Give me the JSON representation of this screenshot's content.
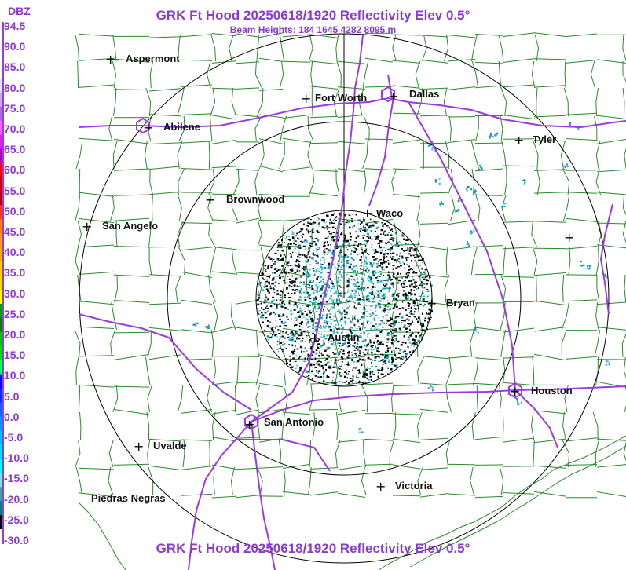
{
  "header": {
    "title": "GRK Ft Hood 20250618/1920 Reflectivity Elev 0.5°",
    "beam_heights": "Beam Heights: 184 1645 4282 8095 m",
    "footer_title": "GRK Ft Hood 20250618/1920 Reflectivity Elev 0.5°"
  },
  "legend": {
    "unit": "DBZ",
    "levels": [
      "94.5",
      "90.0",
      "85.0",
      "80.0",
      "75.0",
      "70.0",
      "65.0",
      "60.0",
      "55.0",
      "50.0",
      "45.0",
      "40.0",
      "35.0",
      "30.0",
      "25.0",
      "20.0",
      "15.0",
      "10.0",
      "5.0",
      "0.0",
      "-5.0",
      "-10.0",
      "-15.0",
      "-20.0",
      "-25.0",
      "-30.0"
    ],
    "colors": [
      "#ffffff",
      "#ffffff",
      "#ffffff",
      "#ffffff",
      "#e8e0f0",
      "#c8a8e8",
      "#a070e0",
      "#ff60ff",
      "#e020e0",
      "#b000b0",
      "#ff0000",
      "#d00000",
      "#b00000",
      "#ff3030",
      "#ff8000",
      "#ff9830",
      "#f0b000",
      "#ffd000",
      "#e8e000",
      "#ffff00",
      "#00a000",
      "#008000",
      "#00c800",
      "#00e000",
      "#00ff60",
      "#0000ff",
      "#0030ff",
      "#1060ff",
      "#0090ff",
      "#00c0ff",
      "#00e0f0",
      "#00ffff",
      "#80e0e0",
      "#40a0a0",
      "#008080",
      "#000000",
      "#ffffff"
    ]
  },
  "cities": [
    {
      "name": "Aspermont"
    },
    {
      "name": "Fort Worth"
    },
    {
      "name": "Dallas"
    },
    {
      "name": "Abilene"
    },
    {
      "name": "Tyler"
    },
    {
      "name": "Brownwood"
    },
    {
      "name": "Waco"
    },
    {
      "name": "San Angelo"
    },
    {
      "name": "Bryan"
    },
    {
      "name": "Austin"
    },
    {
      "name": "Houston"
    },
    {
      "name": "San Antonio"
    },
    {
      "name": "Uvalde"
    },
    {
      "name": "Victoria"
    },
    {
      "name": "Piedras Negras"
    },
    {
      "name": ""
    }
  ],
  "colors": {
    "title": "#8a3ad0",
    "county_lines": "#2a8a2a",
    "highways": "#9a3ae0",
    "range_rings": "#000000"
  }
}
